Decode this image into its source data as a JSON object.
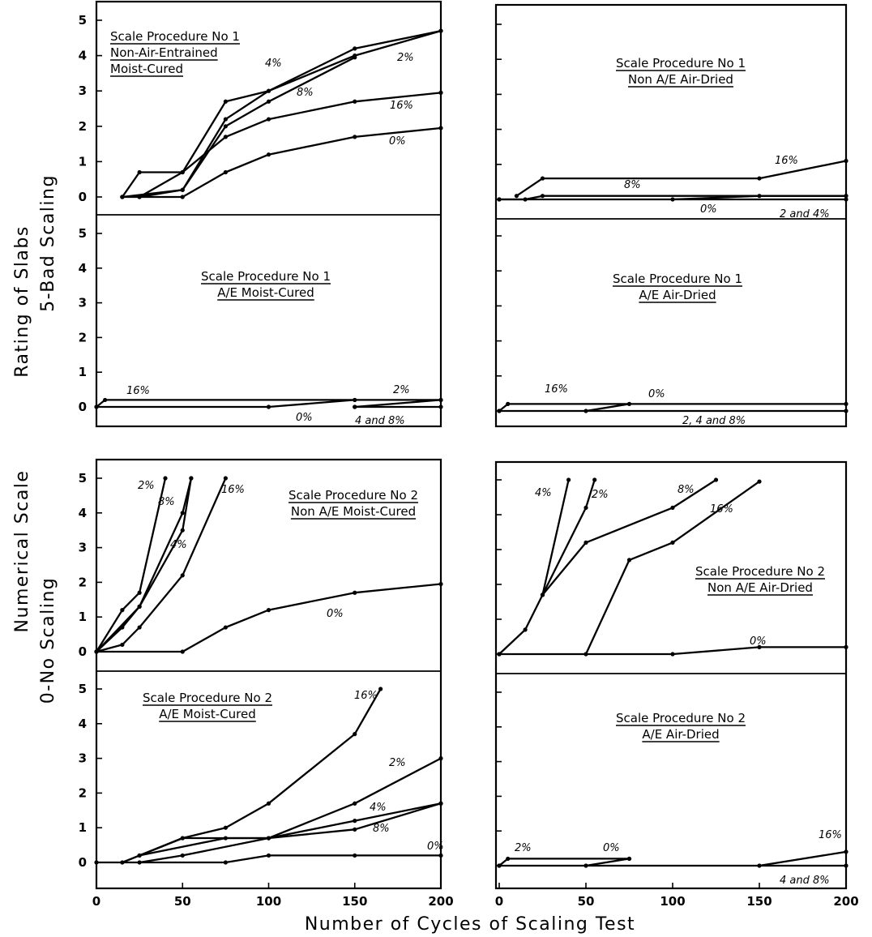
{
  "figure": {
    "xlabel": "Number of Cycles of Scaling Test",
    "ylabel_lines": [
      "Rating of Slabs",
      "5-Bad Scaling",
      "Numerical Scale",
      "0-No Scaling"
    ]
  },
  "chart_data": [
    {
      "type": "line",
      "id": "p1-nonae-moist",
      "title": [
        "Scale Procedure No 1",
        "Non-Air-Entrained",
        "Moist-Cured"
      ],
      "xlim": [
        0,
        200
      ],
      "ylim": [
        0,
        5
      ],
      "series": [
        {
          "name": "0%",
          "x": [
            15,
            50,
            75,
            100,
            150,
            200
          ],
          "y": [
            0,
            0,
            0.7,
            1.2,
            1.7,
            1.95
          ]
        },
        {
          "name": "2%",
          "x": [
            25,
            50,
            75,
            100,
            150,
            200
          ],
          "y": [
            0,
            0.2,
            2.2,
            3.0,
            4.0,
            4.7
          ]
        },
        {
          "name": "4%",
          "x": [
            15,
            25,
            50,
            75,
            100,
            150,
            200
          ],
          "y": [
            0,
            0.7,
            0.7,
            2.7,
            3.0,
            4.2,
            4.7
          ]
        },
        {
          "name": "8%",
          "x": [
            15,
            50,
            75,
            100,
            150
          ],
          "y": [
            0,
            0.2,
            2.0,
            2.7,
            3.95
          ]
        },
        {
          "name": "16%",
          "x": [
            25,
            50,
            75,
            100,
            150,
            200
          ],
          "y": [
            0,
            0.7,
            1.7,
            2.2,
            2.7,
            2.95
          ]
        }
      ]
    },
    {
      "type": "line",
      "id": "p1-ae-moist",
      "title": [
        "Scale Procedure No 1",
        "A/E Moist-Cured"
      ],
      "xlim": [
        0,
        200
      ],
      "ylim": [
        0,
        5
      ],
      "series": [
        {
          "name": "16%",
          "x": [
            0,
            5,
            150,
            200
          ],
          "y": [
            0,
            0.2,
            0.2,
            0.2
          ]
        },
        {
          "name": "0%",
          "x": [
            0,
            100,
            150
          ],
          "y": [
            0,
            0,
            0.2
          ]
        },
        {
          "name": "2%",
          "x": [
            150,
            200
          ],
          "y": [
            0,
            0.2
          ]
        },
        {
          "name": "4 and 8%",
          "x": [
            150,
            200
          ],
          "y": [
            0,
            0
          ]
        }
      ]
    },
    {
      "type": "line",
      "id": "p2-nonae-moist",
      "title": [
        "Scale Procedure No 2",
        "Non A/E Moist-Cured"
      ],
      "xlim": [
        0,
        200
      ],
      "ylim": [
        0,
        5
      ],
      "series": [
        {
          "name": "2%",
          "x": [
            0,
            15,
            25,
            40
          ],
          "y": [
            0,
            1.2,
            1.7,
            5.0
          ]
        },
        {
          "name": "8%",
          "x": [
            0,
            15,
            25,
            50,
            55
          ],
          "y": [
            0,
            0.7,
            1.3,
            4.0,
            5.0
          ]
        },
        {
          "name": "4%",
          "x": [
            0,
            25,
            50,
            55
          ],
          "y": [
            0,
            1.3,
            3.5,
            5.0
          ]
        },
        {
          "name": "16%",
          "x": [
            0,
            15,
            25,
            50,
            75
          ],
          "y": [
            0,
            0.2,
            0.7,
            2.2,
            5.0
          ]
        },
        {
          "name": "0%",
          "x": [
            0,
            50,
            75,
            100,
            150,
            200
          ],
          "y": [
            0,
            0,
            0.7,
            1.2,
            1.7,
            1.95
          ]
        }
      ]
    },
    {
      "type": "line",
      "id": "p2-ae-moist",
      "title": [
        "Scale Procedure No 2",
        "A/E Moist-Cured"
      ],
      "xlim": [
        0,
        200
      ],
      "ylim": [
        0,
        5
      ],
      "series": [
        {
          "name": "16%",
          "x": [
            25,
            50,
            75,
            100,
            150,
            165
          ],
          "y": [
            0.2,
            0.7,
            1.0,
            1.7,
            3.7,
            5.0
          ]
        },
        {
          "name": "2%",
          "x": [
            15,
            50,
            100,
            150,
            200
          ],
          "y": [
            0,
            0.7,
            0.7,
            1.7,
            3.0
          ]
        },
        {
          "name": "4%",
          "x": [
            25,
            50,
            100,
            150,
            200
          ],
          "y": [
            0,
            0.2,
            0.7,
            1.2,
            1.7
          ]
        },
        {
          "name": "8%",
          "x": [
            25,
            75,
            100,
            150,
            200
          ],
          "y": [
            0.2,
            0.7,
            0.7,
            0.95,
            1.7
          ]
        },
        {
          "name": "0%",
          "x": [
            0,
            75,
            100,
            150,
            200
          ],
          "y": [
            0,
            0,
            0.2,
            0.2,
            0.2
          ]
        }
      ]
    },
    {
      "type": "line",
      "id": "p1-nonae-air",
      "title": [
        "Scale Procedure No 1",
        "Non A/E Air-Dried"
      ],
      "xlim": [
        0,
        200
      ],
      "ylim": [
        0,
        5
      ],
      "series": [
        {
          "name": "16%",
          "x": [
            10,
            25,
            150,
            200
          ],
          "y": [
            0.1,
            0.6,
            0.6,
            1.1
          ]
        },
        {
          "name": "8%",
          "x": [
            0,
            15,
            25,
            200
          ],
          "y": [
            0,
            0,
            0.1,
            0.1
          ]
        },
        {
          "name": "0%",
          "x": [
            100,
            150,
            200
          ],
          "y": [
            0,
            0.1,
            0.1
          ]
        },
        {
          "name": "2 and 4%",
          "x": [
            0,
            200
          ],
          "y": [
            0,
            0
          ]
        }
      ]
    },
    {
      "type": "line",
      "id": "p1-ae-air",
      "title": [
        "Scale Procedure No 1",
        "A/E Air-Dried"
      ],
      "xlim": [
        0,
        200
      ],
      "ylim": [
        0,
        5
      ],
      "series": [
        {
          "name": "16%",
          "x": [
            0,
            5,
            200
          ],
          "y": [
            0,
            0.2,
            0.2
          ]
        },
        {
          "name": "0%",
          "x": [
            50,
            75
          ],
          "y": [
            0,
            0.2
          ]
        },
        {
          "name": "2, 4 and 8%",
          "x": [
            0,
            200
          ],
          "y": [
            0,
            0
          ]
        }
      ]
    },
    {
      "type": "line",
      "id": "p2-nonae-air",
      "title": [
        "Scale Procedure No 2",
        "Non A/E Air-Dried"
      ],
      "xlim": [
        0,
        200
      ],
      "ylim": [
        0,
        5
      ],
      "series": [
        {
          "name": "4%",
          "x": [
            0,
            15,
            25,
            40
          ],
          "y": [
            0,
            0.7,
            1.7,
            5.0
          ]
        },
        {
          "name": "2%",
          "x": [
            25,
            50,
            55
          ],
          "y": [
            1.7,
            4.2,
            5.0
          ]
        },
        {
          "name": "8%",
          "x": [
            25,
            50,
            100,
            125
          ],
          "y": [
            1.7,
            3.2,
            4.2,
            5.0
          ]
        },
        {
          "name": "16%",
          "x": [
            50,
            75,
            100,
            150
          ],
          "y": [
            0,
            2.7,
            3.2,
            4.95
          ]
        },
        {
          "name": "0%",
          "x": [
            0,
            100,
            150,
            200
          ],
          "y": [
            0,
            0,
            0.2,
            0.2
          ]
        }
      ]
    },
    {
      "type": "line",
      "id": "p2-ae-air",
      "title": [
        "Scale Procedure No 2",
        "A/E Air-Dried"
      ],
      "xlim": [
        0,
        200
      ],
      "ylim": [
        0,
        5
      ],
      "series": [
        {
          "name": "2%",
          "x": [
            0,
            5,
            75
          ],
          "y": [
            0,
            0.2,
            0.2
          ]
        },
        {
          "name": "0%",
          "x": [
            50,
            75
          ],
          "y": [
            0,
            0.2
          ]
        },
        {
          "name": "16%",
          "x": [
            150,
            200
          ],
          "y": [
            0,
            0.4
          ]
        },
        {
          "name": "4 and 8%",
          "x": [
            0,
            200
          ],
          "y": [
            0,
            0
          ]
        }
      ]
    }
  ],
  "axis": {
    "xticks": [
      0,
      50,
      100,
      150,
      200
    ],
    "yticks": [
      0,
      1,
      2,
      3,
      4,
      5
    ]
  }
}
